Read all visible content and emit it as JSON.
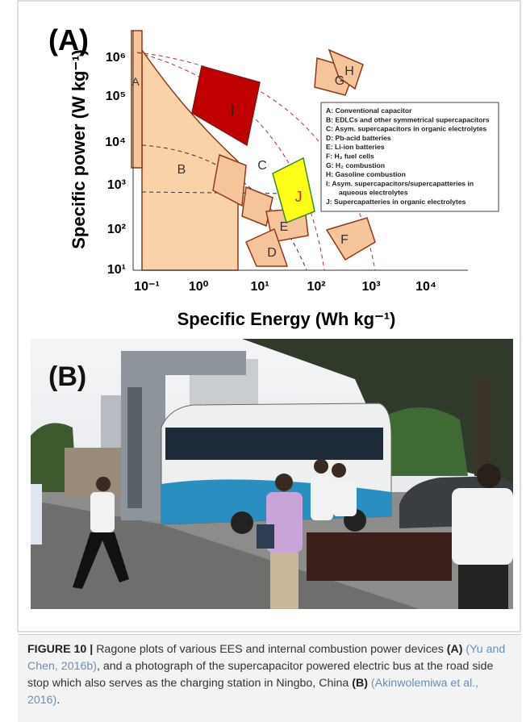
{
  "panel_a": {
    "label": "(A)",
    "y_axis_label": "Specific power (W kg⁻¹)",
    "x_axis_label": "Specific Energy (Wh kg⁻¹)",
    "y_ticks": [
      "10⁶",
      "10⁵",
      "10⁴",
      "10³",
      "10²",
      "10¹"
    ],
    "x_ticks": [
      "10⁻¹",
      "10⁰",
      "10¹",
      "10²",
      "10³",
      "10⁴"
    ],
    "region_labels": [
      "A",
      "B",
      "C",
      "D",
      "E",
      "F",
      "G",
      "H",
      "I",
      "J"
    ],
    "legend": [
      "A: Conventional capacitor",
      "B: EDLCs and other symmetrical supercapacitors",
      "C: Asym. supercapacitors in organic electrolytes",
      "D: Pb-acid batteries",
      "E: Li-ion batteries",
      "F: H₂ fuel cells",
      "G: H₂ combustion",
      "H: Gasoline combustion",
      "I: Asym. supercapacitors/supercapatteries in",
      "aqueous electrolytes",
      "J: Supercapatteries in organic electrolytes"
    ]
  },
  "panel_b": {
    "label": "(B)"
  },
  "caption": {
    "figure_label": "FIGURE 10 |",
    "text_1": "Ragone plots of various EES and internal combustion power devices",
    "ref_a": "(A)",
    "cite_1": "(Yu and Chen, 2016b)",
    "text_2": ", and a photograph of the supercapacitor powered electric bus at the road side stop which also serves as the charging station in Ningbo, China",
    "ref_b": "(B)",
    "cite_2": "(Akinwolemiwa et al., 2016)",
    "text_3": "."
  }
}
